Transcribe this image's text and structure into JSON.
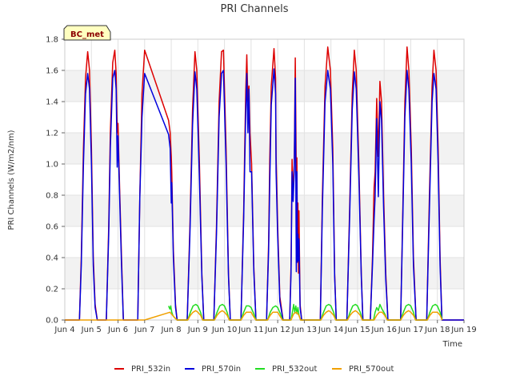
{
  "chart_data": {
    "type": "line",
    "title": "PRI Channels",
    "xlabel": "Time",
    "ylabel": "PRI Channels (W/m2/nm)",
    "xlim": [
      4.0,
      19.0
    ],
    "ylim": [
      0.0,
      1.8
    ],
    "x_ticks": [
      4,
      5,
      6,
      7,
      8,
      9,
      10,
      11,
      12,
      13,
      14,
      15,
      16,
      17,
      18,
      19
    ],
    "x_tick_labels": [
      "Jun 4",
      "Jun 5",
      "Jun 6",
      "Jun 7",
      "Jun 8",
      "Jun 9",
      "Jun 10",
      "Jun 11",
      "Jun 12",
      "Jun 13",
      "Jun 14",
      "Jun 15",
      "Jun 16",
      "Jun 17",
      "Jun 18",
      "Jun 19"
    ],
    "y_ticks": [
      0.0,
      0.2,
      0.4,
      0.6,
      0.8,
      1.0,
      1.2,
      1.4,
      1.6,
      1.8
    ],
    "y_tick_labels": [
      "0.0",
      "0.2",
      "0.4",
      "0.6",
      "0.8",
      "1.0",
      "1.2",
      "1.4",
      "1.6",
      "1.8"
    ],
    "badge": "BC_met",
    "legend_position": "bottom-center",
    "series": [
      {
        "name": "PRI_532in",
        "color": "#dd0000",
        "x": [
          4.0,
          4.55,
          4.62,
          4.7,
          4.78,
          4.86,
          4.93,
          5.0,
          5.07,
          5.14,
          5.22,
          5.29,
          5.36,
          5.45,
          5.56,
          5.65,
          5.71,
          5.8,
          5.88,
          5.93,
          5.97,
          6.0,
          6.06,
          6.13,
          6.2,
          6.35,
          6.47,
          6.62,
          6.74,
          6.82,
          6.9,
          7.0,
          7.9,
          7.96,
          8.0,
          8.02,
          8.08,
          8.16,
          8.22,
          8.38,
          8.5,
          8.6,
          8.7,
          8.8,
          8.89,
          8.96,
          9.06,
          9.15,
          9.22,
          9.38,
          9.5,
          9.6,
          9.7,
          9.8,
          9.89,
          9.96,
          10.06,
          10.15,
          10.22,
          10.4,
          10.52,
          10.62,
          10.72,
          10.76,
          10.8,
          10.84,
          10.88,
          10.92,
          10.96,
          11.02,
          11.1,
          11.18,
          11.4,
          11.5,
          11.58,
          11.66,
          11.7,
          11.76,
          11.86,
          11.92,
          11.94,
          12.0,
          12.08,
          12.2,
          12.35,
          12.45,
          12.5,
          12.54,
          12.58,
          12.62,
          12.66,
          12.7,
          12.72,
          12.74,
          12.76,
          12.78,
          12.8,
          12.84,
          12.9,
          13.0,
          13.1,
          13.2,
          13.3,
          13.4,
          13.5,
          13.6,
          13.68,
          13.78,
          13.88,
          13.98,
          14.07,
          14.14,
          14.2,
          14.4,
          14.5,
          14.6,
          14.7,
          14.8,
          14.88,
          14.95,
          15.05,
          15.14,
          15.2,
          15.4,
          15.48,
          15.56,
          15.62,
          15.66,
          15.72,
          15.78,
          15.84,
          15.9,
          15.98,
          16.06,
          16.14,
          16.22,
          16.4,
          16.52,
          16.62,
          16.7,
          16.78,
          16.86,
          16.93,
          17.02,
          17.1,
          17.2,
          17.4,
          17.52,
          17.6,
          17.7,
          17.8,
          17.87,
          17.95,
          18.03,
          18.1,
          18.17,
          19.0
        ],
        "y": [
          0.0,
          0.0,
          0.4,
          1.1,
          1.55,
          1.72,
          1.6,
          1.1,
          0.4,
          0.1,
          0.0,
          0.0,
          0.0,
          0.0,
          0.0,
          0.6,
          1.2,
          1.65,
          1.73,
          1.58,
          1.2,
          1.26,
          0.85,
          0.4,
          0.0,
          0.0,
          0.0,
          0.0,
          0.0,
          0.8,
          1.45,
          1.73,
          1.28,
          1.2,
          1.05,
          0.95,
          0.45,
          0.1,
          0.0,
          0.0,
          0.0,
          0.0,
          0.6,
          1.35,
          1.72,
          1.6,
          1.0,
          0.3,
          0.0,
          0.0,
          0.0,
          0.0,
          0.6,
          1.4,
          1.72,
          1.73,
          1.1,
          0.3,
          0.0,
          0.0,
          0.0,
          0.0,
          0.7,
          1.1,
          1.47,
          1.7,
          1.4,
          1.5,
          1.2,
          1.0,
          0.35,
          0.0,
          0.0,
          0.0,
          0.0,
          0.5,
          1.03,
          1.5,
          1.74,
          1.55,
          1.05,
          0.6,
          0.15,
          0.0,
          0.0,
          0.0,
          0.35,
          1.03,
          0.8,
          1.0,
          1.68,
          0.9,
          1.04,
          0.45,
          0.75,
          0.3,
          0.7,
          0.1,
          0.0,
          0.0,
          0.0,
          0.0,
          0.0,
          0.0,
          0.0,
          0.0,
          0.8,
          1.5,
          1.75,
          1.6,
          1.1,
          0.3,
          0.0,
          0.0,
          0.0,
          0.0,
          0.7,
          1.45,
          1.73,
          1.6,
          1.0,
          0.3,
          0.0,
          0.0,
          0.0,
          0.4,
          0.85,
          0.95,
          1.42,
          1.05,
          1.53,
          1.4,
          0.8,
          0.3,
          0.0,
          0.0,
          0.0,
          0.0,
          0.0,
          0.7,
          1.4,
          1.75,
          1.6,
          1.1,
          0.4,
          0.0,
          0.0,
          0.0,
          0.0,
          0.8,
          1.5,
          1.73,
          1.6,
          1.1,
          0.4,
          0.0,
          0.0
        ]
      },
      {
        "name": "PRI_570in",
        "color": "#0000dd",
        "x": [
          4.0,
          4.55,
          4.62,
          4.7,
          4.78,
          4.86,
          4.93,
          5.0,
          5.07,
          5.14,
          5.22,
          5.29,
          5.36,
          5.45,
          5.56,
          5.65,
          5.71,
          5.8,
          5.88,
          5.93,
          5.97,
          6.0,
          6.06,
          6.13,
          6.2,
          6.35,
          6.47,
          6.62,
          6.74,
          6.82,
          6.9,
          7.0,
          7.9,
          7.96,
          8.0,
          8.02,
          8.08,
          8.16,
          8.22,
          8.38,
          8.5,
          8.6,
          8.7,
          8.8,
          8.89,
          8.96,
          9.06,
          9.15,
          9.22,
          9.38,
          9.5,
          9.6,
          9.7,
          9.8,
          9.89,
          9.96,
          10.06,
          10.15,
          10.22,
          10.4,
          10.52,
          10.62,
          10.72,
          10.76,
          10.8,
          10.84,
          10.88,
          10.92,
          10.96,
          11.02,
          11.1,
          11.18,
          11.4,
          11.5,
          11.58,
          11.66,
          11.7,
          11.76,
          11.86,
          11.92,
          11.94,
          12.0,
          12.08,
          12.2,
          12.35,
          12.45,
          12.5,
          12.54,
          12.58,
          12.62,
          12.66,
          12.7,
          12.72,
          12.74,
          12.76,
          12.78,
          12.8,
          12.84,
          12.9,
          13.0,
          13.1,
          13.2,
          13.3,
          13.4,
          13.5,
          13.6,
          13.68,
          13.78,
          13.88,
          13.98,
          14.07,
          14.14,
          14.2,
          14.4,
          14.5,
          14.6,
          14.7,
          14.8,
          14.88,
          14.95,
          15.05,
          15.14,
          15.2,
          15.4,
          15.48,
          15.56,
          15.62,
          15.66,
          15.72,
          15.78,
          15.84,
          15.9,
          15.98,
          16.06,
          16.14,
          16.22,
          16.4,
          16.52,
          16.62,
          16.7,
          16.78,
          16.86,
          16.93,
          17.02,
          17.1,
          17.2,
          17.4,
          17.52,
          17.6,
          17.7,
          17.8,
          17.87,
          17.95,
          18.03,
          18.1,
          18.17,
          19.0
        ],
        "y": [
          0.0,
          0.0,
          0.35,
          1.0,
          1.45,
          1.58,
          1.48,
          1.0,
          0.35,
          0.08,
          0.0,
          0.0,
          0.0,
          0.0,
          0.0,
          0.55,
          1.1,
          1.55,
          1.6,
          1.48,
          0.98,
          1.18,
          0.8,
          0.35,
          0.0,
          0.0,
          0.0,
          0.0,
          0.0,
          0.79,
          1.3,
          1.58,
          1.19,
          1.1,
          0.75,
          0.88,
          0.4,
          0.08,
          0.0,
          0.0,
          0.0,
          0.0,
          0.55,
          1.25,
          1.59,
          1.48,
          0.9,
          0.28,
          0.0,
          0.0,
          0.0,
          0.0,
          0.55,
          1.3,
          1.58,
          1.6,
          1.0,
          0.28,
          0.0,
          0.0,
          0.0,
          0.0,
          0.65,
          1.0,
          1.33,
          1.58,
          1.2,
          1.48,
          0.95,
          0.95,
          0.32,
          0.0,
          0.0,
          0.0,
          0.0,
          0.45,
          0.88,
          1.38,
          1.61,
          1.45,
          0.95,
          0.54,
          0.12,
          0.0,
          0.0,
          0.0,
          0.3,
          0.95,
          0.76,
          0.95,
          1.55,
          0.31,
          0.95,
          0.37,
          0.55,
          0.38,
          0.52,
          0.08,
          0.0,
          0.0,
          0.0,
          0.0,
          0.0,
          0.0,
          0.0,
          0.0,
          0.72,
          1.4,
          1.6,
          1.48,
          1.0,
          0.28,
          0.0,
          0.0,
          0.0,
          0.0,
          0.65,
          1.35,
          1.59,
          1.48,
          0.92,
          0.28,
          0.0,
          0.0,
          0.0,
          0.35,
          0.64,
          0.79,
          1.29,
          0.79,
          1.4,
          1.28,
          0.72,
          0.26,
          0.0,
          0.0,
          0.0,
          0.0,
          0.0,
          0.65,
          1.3,
          1.6,
          1.48,
          1.0,
          0.35,
          0.0,
          0.0,
          0.0,
          0.0,
          0.72,
          1.4,
          1.58,
          1.48,
          1.0,
          0.35,
          0.0,
          0.0
        ]
      },
      {
        "name": "PRI_532out",
        "color": "#22dd22",
        "x": [
          7.9,
          7.95,
          7.98,
          8.02,
          8.06,
          8.1,
          8.16,
          8.22,
          8.62,
          8.72,
          8.82,
          8.92,
          9.0,
          9.1,
          9.18,
          9.62,
          9.72,
          9.82,
          9.92,
          10.0,
          10.1,
          10.18,
          10.62,
          10.72,
          10.82,
          10.92,
          11.0,
          11.1,
          11.18,
          11.62,
          11.72,
          11.82,
          11.92,
          12.0,
          12.1,
          12.18,
          12.5,
          12.56,
          12.6,
          12.64,
          12.68,
          12.72,
          12.76,
          12.8,
          12.86,
          13.62,
          13.72,
          13.82,
          13.92,
          14.0,
          14.1,
          14.18,
          14.62,
          14.72,
          14.82,
          14.92,
          15.0,
          15.1,
          15.18,
          15.6,
          15.66,
          15.72,
          15.78,
          15.84,
          15.92,
          16.02,
          16.12,
          16.62,
          16.72,
          16.82,
          16.92,
          17.0,
          17.1,
          17.18,
          17.62,
          17.72,
          17.82,
          17.92,
          18.0,
          18.1,
          18.18
        ],
        "y": [
          0.09,
          0.07,
          0.09,
          0.05,
          0.03,
          0.02,
          0.01,
          0.0,
          0.0,
          0.05,
          0.09,
          0.1,
          0.09,
          0.05,
          0.0,
          0.0,
          0.05,
          0.09,
          0.1,
          0.09,
          0.05,
          0.0,
          0.0,
          0.05,
          0.09,
          0.09,
          0.08,
          0.04,
          0.0,
          0.0,
          0.05,
          0.08,
          0.09,
          0.08,
          0.04,
          0.0,
          0.0,
          0.06,
          0.1,
          0.05,
          0.09,
          0.04,
          0.08,
          0.03,
          0.0,
          0.0,
          0.05,
          0.09,
          0.1,
          0.09,
          0.05,
          0.0,
          0.0,
          0.05,
          0.09,
          0.1,
          0.09,
          0.05,
          0.0,
          0.0,
          0.05,
          0.08,
          0.06,
          0.1,
          0.07,
          0.04,
          0.0,
          0.0,
          0.05,
          0.09,
          0.1,
          0.09,
          0.05,
          0.0,
          0.0,
          0.05,
          0.09,
          0.1,
          0.09,
          0.05,
          0.0
        ]
      },
      {
        "name": "PRI_570out",
        "color": "#f0a000",
        "x": [
          4.0,
          7.0,
          7.95,
          8.05,
          8.15,
          8.22,
          8.62,
          8.72,
          8.82,
          8.92,
          9.0,
          9.1,
          9.18,
          9.62,
          9.72,
          9.82,
          9.92,
          10.0,
          10.1,
          10.18,
          10.62,
          10.72,
          10.82,
          10.92,
          11.0,
          11.1,
          11.18,
          11.62,
          11.72,
          11.82,
          11.92,
          12.0,
          12.1,
          12.18,
          12.5,
          12.6,
          12.7,
          12.8,
          12.86,
          13.62,
          13.72,
          13.82,
          13.92,
          14.0,
          14.1,
          14.18,
          14.62,
          14.72,
          14.82,
          14.92,
          15.0,
          15.1,
          15.18,
          15.62,
          15.72,
          15.82,
          15.92,
          16.02,
          16.12,
          16.62,
          16.72,
          16.82,
          16.92,
          17.0,
          17.1,
          17.18,
          17.62,
          17.72,
          17.82,
          17.92,
          18.0,
          18.1,
          18.18
        ],
        "y": [
          0.0,
          0.0,
          0.05,
          0.03,
          0.01,
          0.0,
          0.0,
          0.03,
          0.05,
          0.06,
          0.05,
          0.03,
          0.0,
          0.0,
          0.03,
          0.05,
          0.06,
          0.05,
          0.03,
          0.0,
          0.0,
          0.03,
          0.05,
          0.05,
          0.05,
          0.02,
          0.0,
          0.0,
          0.03,
          0.05,
          0.05,
          0.05,
          0.02,
          0.0,
          0.0,
          0.04,
          0.05,
          0.03,
          0.0,
          0.0,
          0.03,
          0.05,
          0.06,
          0.05,
          0.03,
          0.0,
          0.0,
          0.03,
          0.05,
          0.06,
          0.05,
          0.03,
          0.0,
          0.0,
          0.03,
          0.05,
          0.05,
          0.03,
          0.0,
          0.0,
          0.03,
          0.05,
          0.06,
          0.05,
          0.03,
          0.0,
          0.0,
          0.03,
          0.05,
          0.05,
          0.05,
          0.03,
          0.0
        ]
      }
    ]
  }
}
